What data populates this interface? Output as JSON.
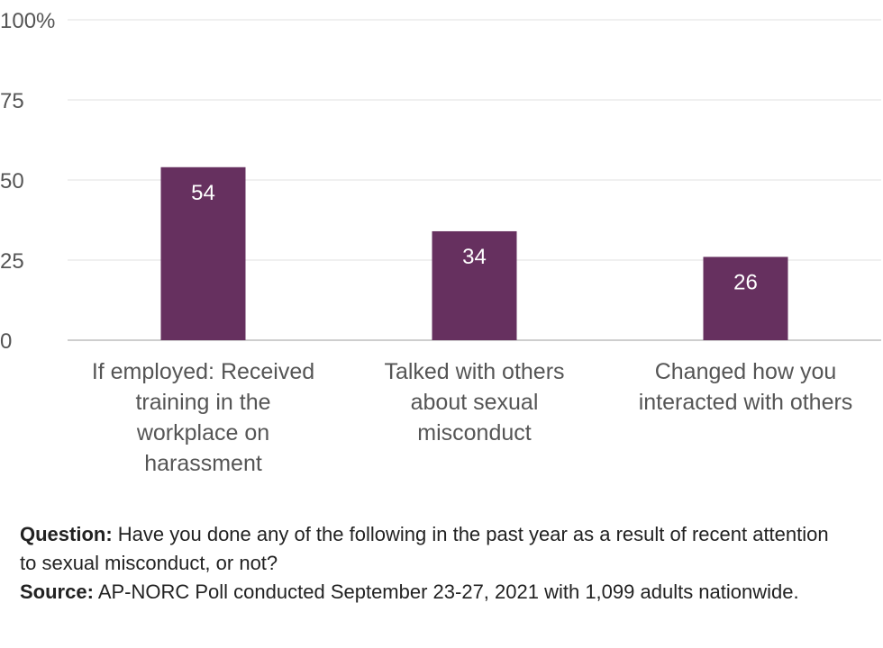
{
  "chart_data": {
    "type": "bar",
    "categories": [
      [
        "If employed: Received",
        "training in the",
        "workplace on",
        "harassment"
      ],
      [
        "Talked with others",
        "about sexual",
        "misconduct"
      ],
      [
        "Changed how you",
        "interacted with others"
      ]
    ],
    "values": [
      54,
      34,
      26
    ],
    "data_labels": [
      "54",
      "34",
      "26"
    ],
    "ylim": [
      0,
      100
    ],
    "yticks": [
      0,
      25,
      50,
      75,
      100
    ],
    "ytick_labels": [
      "0",
      "25",
      "50",
      "75",
      "100%"
    ],
    "grid": true,
    "legend": "none",
    "bar_color": "#66305f",
    "title": "",
    "xlabel": "",
    "ylabel": ""
  },
  "notes": {
    "question_key": "Question:",
    "question_text": " Have you done any of the following in the past year as a result of recent attention to sexual misconduct, or not?",
    "source_key": "Source:",
    "source_text": " AP-NORC Poll conducted September 23-27, 2021 with 1,099 adults nationwide."
  }
}
